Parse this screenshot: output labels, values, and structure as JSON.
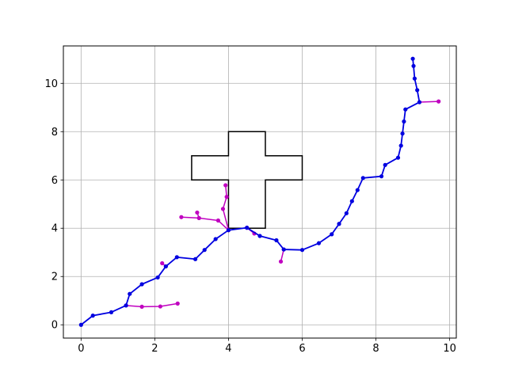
{
  "chart_data": {
    "type": "line",
    "title": "",
    "xlabel": "",
    "ylabel": "",
    "xlim": [
      -0.48,
      10.18
    ],
    "ylim": [
      -0.55,
      11.55
    ],
    "x_ticks": [
      0,
      2,
      4,
      6,
      8,
      10
    ],
    "y_ticks": [
      0,
      2,
      4,
      6,
      8,
      10
    ],
    "x_tick_labels": [
      "0",
      "2",
      "4",
      "6",
      "8",
      "10"
    ],
    "y_tick_labels": [
      "0",
      "2",
      "4",
      "6",
      "8",
      "10"
    ],
    "grid": true,
    "legend": "none",
    "obstacle": {
      "shape": "cross",
      "color": "#000000",
      "outline": [
        [
          4,
          4
        ],
        [
          5,
          4
        ],
        [
          5,
          6
        ],
        [
          6,
          6
        ],
        [
          6,
          7
        ],
        [
          5,
          7
        ],
        [
          5,
          8
        ],
        [
          4,
          8
        ],
        [
          4,
          7
        ],
        [
          3,
          7
        ],
        [
          3,
          6
        ],
        [
          4,
          6
        ],
        [
          4,
          4
        ]
      ]
    },
    "series": [
      {
        "role": "path",
        "color": "#0000e0",
        "points": [
          [
            0,
            0
          ],
          [
            0.32,
            0.38
          ],
          [
            0.82,
            0.52
          ],
          [
            1.22,
            0.8
          ],
          [
            1.32,
            1.28
          ],
          [
            1.65,
            1.68
          ],
          [
            2.08,
            1.96
          ],
          [
            2.3,
            2.42
          ],
          [
            2.6,
            2.8
          ],
          [
            3.1,
            2.72
          ],
          [
            3.35,
            3.1
          ],
          [
            3.65,
            3.55
          ],
          [
            4.0,
            3.92
          ],
          [
            4.5,
            4.02
          ],
          [
            4.85,
            3.68
          ],
          [
            5.3,
            3.5
          ],
          [
            5.5,
            3.12
          ],
          [
            6.0,
            3.1
          ],
          [
            6.45,
            3.38
          ],
          [
            6.8,
            3.75
          ],
          [
            7.0,
            4.18
          ],
          [
            7.2,
            4.62
          ],
          [
            7.35,
            5.12
          ],
          [
            7.5,
            5.58
          ],
          [
            7.65,
            6.08
          ],
          [
            8.15,
            6.15
          ],
          [
            8.25,
            6.62
          ],
          [
            8.6,
            6.92
          ],
          [
            8.68,
            7.42
          ],
          [
            8.72,
            7.92
          ],
          [
            8.76,
            8.42
          ],
          [
            8.8,
            8.92
          ],
          [
            9.18,
            9.22
          ],
          [
            9.12,
            9.72
          ],
          [
            9.05,
            10.2
          ],
          [
            9.02,
            10.72
          ],
          [
            9.0,
            11.02
          ]
        ]
      },
      {
        "role": "branch",
        "color": "#c000c0",
        "segments": [
          [
            [
              1.22,
              0.8
            ],
            [
              1.65,
              0.75
            ],
            [
              2.15,
              0.76
            ],
            [
              2.62,
              0.88
            ]
          ],
          [
            [
              2.3,
              2.42
            ],
            [
              2.2,
              2.55
            ]
          ],
          [
            [
              4.0,
              3.92
            ],
            [
              3.72,
              4.32
            ],
            [
              3.2,
              4.42
            ],
            [
              2.72,
              4.46
            ]
          ],
          [
            [
              3.2,
              4.42
            ],
            [
              3.15,
              4.65
            ]
          ],
          [
            [
              4.0,
              3.92
            ],
            [
              3.85,
              4.8
            ],
            [
              3.95,
              5.3
            ],
            [
              3.92,
              5.78
            ]
          ],
          [
            [
              4.5,
              4.02
            ],
            [
              4.7,
              3.78
            ]
          ],
          [
            [
              5.5,
              3.12
            ],
            [
              5.42,
              2.62
            ]
          ],
          [
            [
              9.18,
              9.22
            ],
            [
              9.7,
              9.25
            ]
          ]
        ]
      }
    ]
  }
}
